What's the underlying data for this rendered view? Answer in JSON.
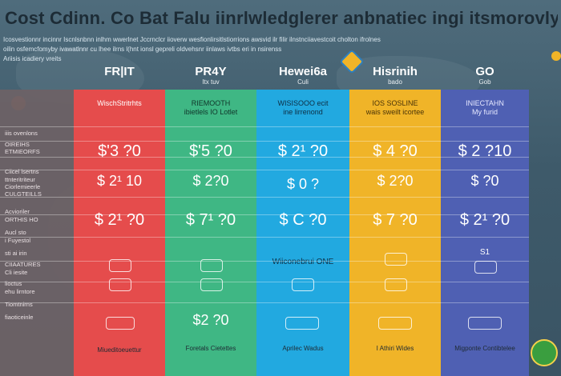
{
  "title": "Cost Cdinn.   Co Bat Falu iinrlwledglerer anbnatiec ingi itsmorovly",
  "subtitle_lines": [
    "Icosvestionnr  incinnr  Iscnlsnbnn inlhm  wwerlnet Jccrnclcr  iioverw  wesfionlirsitlstiorrions  awsvid ilr filir ilnstnciiavestcoit cholton ifrolnes",
    "oilin osfemcfomyby  ivawatlnnr cu  lhee ilrns l(hnt ionsl  gepreli  oldvehsnr  iinlaws  ivtbs  eri  in nsirenss",
    "Ariisis  icadiery vreits"
  ],
  "columns": [
    {
      "name": "FR|IT",
      "sub": "",
      "color": "#e54c4c",
      "desc": "WischStritrhts",
      "prices": [
        "$'3 ?0",
        "$ 2¹ 10",
        "$ 2¹ ?0"
      ],
      "foot": "Miueditoeuettur"
    },
    {
      "name": "PR4Y",
      "sub": "Itx tuv",
      "color": "#3fb784",
      "desc": "RIEMOOTH\nibietlels IO Lotlet",
      "prices": [
        "$'5 ?0",
        "$ 2?0",
        "$ 7¹ ?0"
      ],
      "foot": "Foretals Cietettes"
    },
    {
      "name": "Hewei6a",
      "sub": "Culi",
      "color": "#22a9e0",
      "desc": "WISISOOO ecit\nine lirrenond",
      "prices": [
        "$ 2¹ ?0",
        "$ 0 ?",
        "$ C ?0"
      ],
      "mid_note": "Wiiconebrui   ONE",
      "foot": "Aprilec  Wadus"
    },
    {
      "name": "Hisrinih",
      "sub": "bado",
      "color": "#f0b428",
      "desc": "IOS  SOSLINE\nwais sweilt icortee",
      "prices": [
        "$ 4 ?0",
        "$ 2?0",
        "$ 7 ?0"
      ],
      "foot": "I Athiri  Wides"
    },
    {
      "name": "GO",
      "sub": "Gob",
      "color": "#4f60b3",
      "desc": "INIECTAHN\nMy furid",
      "prices": [
        "$ 2 ?10",
        "$ ?0",
        "$ 2¹ ?0"
      ],
      "mid_note": "S1",
      "foot": "Migponte Contibtelee"
    }
  ],
  "row_labels": [
    "",
    "iiis ovenlons",
    "OIREIHS",
    "ETMIEORFS",
    "Ciicel lsertns",
    "ttnteritriteur",
    "Ciorlemieerle",
    "CULGTEILLS",
    "Acvioriler",
    "ORTHIS HO",
    "Aucl sto",
    "i Fuyestol",
    "sti ai  irin",
    "CIIAATURES",
    "Cli iesite",
    "lioctus",
    "ehu lirntore",
    "Tiomtnirns",
    "fiaoticeinle"
  ],
  "colors": {
    "red": "#e54c4c",
    "green": "#3fb784",
    "blue": "#22a9e0",
    "yellow": "#f0b428",
    "indigo": "#4f60b3",
    "bg": "#4f6c7c"
  }
}
